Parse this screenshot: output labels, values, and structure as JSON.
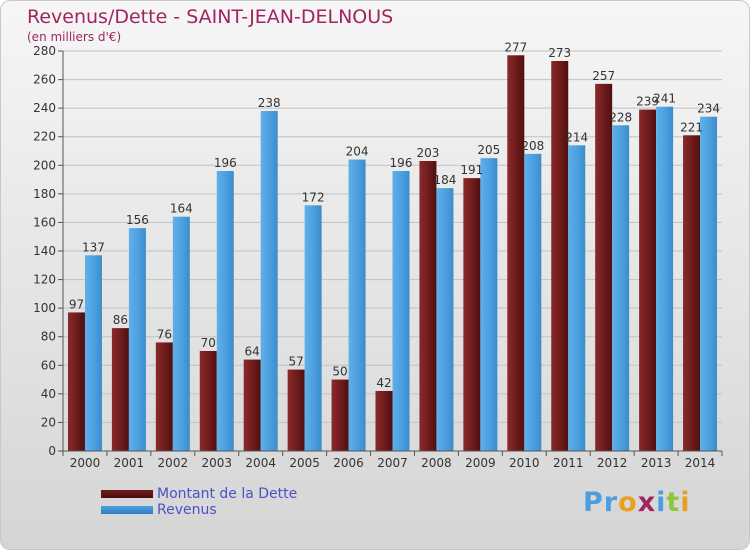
{
  "title": "Revenus/Dette - SAINT-JEAN-DELNOUS",
  "subtitle": "(en milliers d'€)",
  "colors": {
    "title": "#a0255f",
    "dette": "#6e1b1b",
    "revenus": "#4c9fdf",
    "legend_text": "#4a52c8"
  },
  "chart_data": {
    "type": "bar",
    "title": "Revenus/Dette - SAINT-JEAN-DELNOUS",
    "subtitle": "(en milliers d'€)",
    "xlabel": "",
    "ylabel": "",
    "ylim": [
      0,
      280
    ],
    "yticks": [
      0,
      20,
      40,
      60,
      80,
      100,
      120,
      140,
      160,
      180,
      200,
      220,
      240,
      260,
      280
    ],
    "grid": true,
    "legend_position": "bottom-left",
    "categories": [
      "2000",
      "2001",
      "2002",
      "2003",
      "2004",
      "2005",
      "2006",
      "2007",
      "2008",
      "2009",
      "2010",
      "2011",
      "2012",
      "2013",
      "2014"
    ],
    "series": [
      {
        "name": "Montant de la Dette",
        "color": "#6e1b1b",
        "values": [
          97,
          86,
          76,
          70,
          64,
          57,
          50,
          42,
          203,
          191,
          277,
          273,
          257,
          239,
          221
        ],
        "labels": [
          "97",
          "86",
          "76",
          "70",
          "64",
          "57",
          "50",
          "42",
          "203",
          "191",
          "277",
          "273",
          "257",
          "239",
          "221"
        ]
      },
      {
        "name": "Revenus",
        "color": "#4c9fdf",
        "values": [
          137,
          156,
          164,
          196,
          238,
          172,
          204,
          196,
          184,
          205,
          208,
          214,
          228,
          241,
          234
        ],
        "labels": [
          "137",
          "156",
          "164",
          "196",
          "238",
          "172",
          "204",
          "196",
          "184",
          "205",
          "208",
          "214",
          "228",
          "241",
          "234"
        ]
      }
    ]
  },
  "legend": [
    {
      "label": "Montant de la Dette",
      "color": "#6e1b1b"
    },
    {
      "label": "Revenus",
      "color": "#4c9fdf"
    }
  ],
  "brand": {
    "letters": [
      "P",
      "r",
      "o",
      "x",
      "i",
      "t",
      "i"
    ],
    "colors": [
      "#4c9fdf",
      "#4c9fdf",
      "#e8a020",
      "#a0255f",
      "#4c9fdf",
      "#8cc63f",
      "#e8a020"
    ]
  }
}
